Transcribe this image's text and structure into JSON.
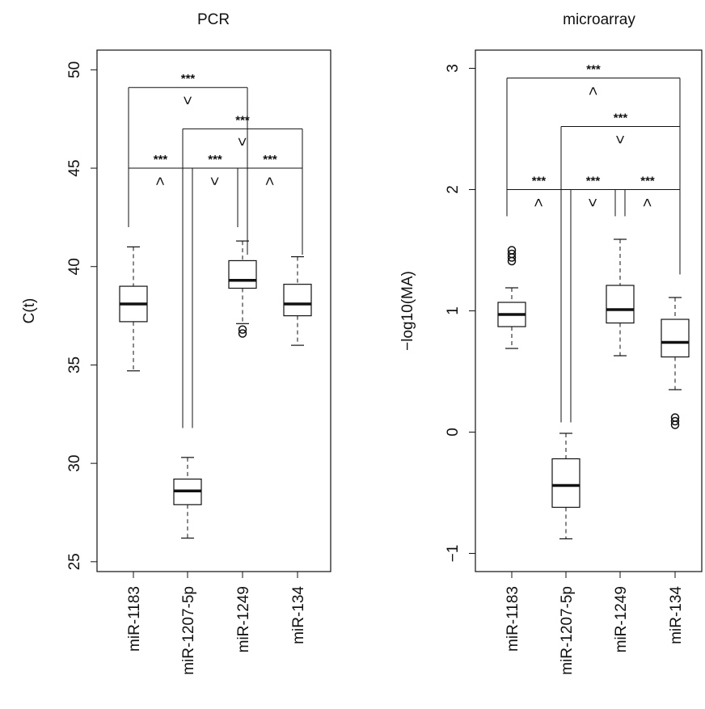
{
  "colors": {
    "ink": "#111111",
    "background": "#ffffff"
  },
  "chart_data": [
    {
      "type": "boxplot",
      "title": "PCR",
      "xlabel": "",
      "ylabel": "C(t)",
      "ylim": [
        24.5,
        51
      ],
      "yticks": [
        "25",
        "30",
        "35",
        "40",
        "45",
        "50"
      ],
      "categories": [
        "miR-1183",
        "miR-1207-5p",
        "miR-1249",
        "miR-134"
      ],
      "boxes": [
        {
          "min": 34.7,
          "q1": 37.2,
          "median": 38.1,
          "q3": 39.0,
          "max": 41.0,
          "outliers": []
        },
        {
          "min": 26.2,
          "q1": 27.9,
          "median": 28.6,
          "q3": 29.2,
          "max": 30.3,
          "outliers": []
        },
        {
          "min": 37.1,
          "q1": 38.9,
          "median": 39.3,
          "q3": 40.3,
          "max": 41.3,
          "outliers": [
            36.6,
            36.8
          ]
        },
        {
          "min": 36.0,
          "q1": 37.5,
          "median": 38.1,
          "q3": 39.1,
          "max": 40.5,
          "outliers": []
        }
      ],
      "comparisons": [
        {
          "from": 0,
          "to": 2,
          "level": 49.1,
          "legs": [
            42.0,
            40.6
          ],
          "stars": "***",
          "symbol": "<",
          "dir": "down"
        },
        {
          "from": 1,
          "to": 3,
          "level": 47.0,
          "legs": [
            31.8,
            40.6
          ],
          "stars": "***",
          "symbol": "<",
          "dir": "down"
        },
        {
          "from": 0,
          "to": 1,
          "level": 45.0,
          "legs": [
            42.0,
            31.8
          ],
          "stars": "***",
          "symbol": ">",
          "dir": "up"
        },
        {
          "from": 1,
          "to": 2,
          "level": 45.0,
          "legs": [
            31.8,
            42.0
          ],
          "stars": "***",
          "symbol": "<",
          "dir": "up"
        },
        {
          "from": 2,
          "to": 3,
          "level": 45.0,
          "legs": [
            42.0,
            42.0
          ],
          "stars": "***",
          "symbol": ">",
          "dir": "up"
        }
      ]
    },
    {
      "type": "boxplot",
      "title": "microarray",
      "xlabel": "",
      "ylabel": "−log10(MA)",
      "ylim": [
        -1.15,
        3.15
      ],
      "yticks": [
        "−1",
        "0",
        "1",
        "2",
        "3"
      ],
      "categories": [
        "miR-1183",
        "miR-1207-5p",
        "miR-1249",
        "miR-134"
      ],
      "boxes": [
        {
          "min": 0.69,
          "q1": 0.87,
          "median": 0.97,
          "q3": 1.07,
          "max": 1.19,
          "outliers": [
            1.41,
            1.44,
            1.47,
            1.5
          ]
        },
        {
          "min": -0.88,
          "q1": -0.62,
          "median": -0.44,
          "q3": -0.22,
          "max": -0.01,
          "outliers": []
        },
        {
          "min": 0.63,
          "q1": 0.9,
          "median": 1.01,
          "q3": 1.21,
          "max": 1.59,
          "outliers": []
        },
        {
          "min": 0.35,
          "q1": 0.62,
          "median": 0.74,
          "q3": 0.93,
          "max": 1.11,
          "outliers": [
            0.06,
            0.09,
            0.12
          ]
        }
      ],
      "comparisons": [
        {
          "from": 0,
          "to": 3,
          "level": 2.92,
          "legs": [
            1.78,
            1.3
          ],
          "stars": "***",
          "symbol": ">",
          "dir": "down"
        },
        {
          "from": 1,
          "to": 3,
          "level": 2.52,
          "legs": [
            0.08,
            1.3
          ],
          "stars": "***",
          "symbol": "<",
          "dir": "down"
        },
        {
          "from": 0,
          "to": 1,
          "level": 2.0,
          "legs": [
            1.78,
            0.08
          ],
          "stars": "***",
          "symbol": ">",
          "dir": "up"
        },
        {
          "from": 1,
          "to": 2,
          "level": 2.0,
          "legs": [
            0.08,
            1.78
          ],
          "stars": "***",
          "symbol": "<",
          "dir": "up"
        },
        {
          "from": 2,
          "to": 3,
          "level": 2.0,
          "legs": [
            1.78,
            1.78
          ],
          "stars": "***",
          "symbol": ">",
          "dir": "up"
        }
      ]
    }
  ]
}
